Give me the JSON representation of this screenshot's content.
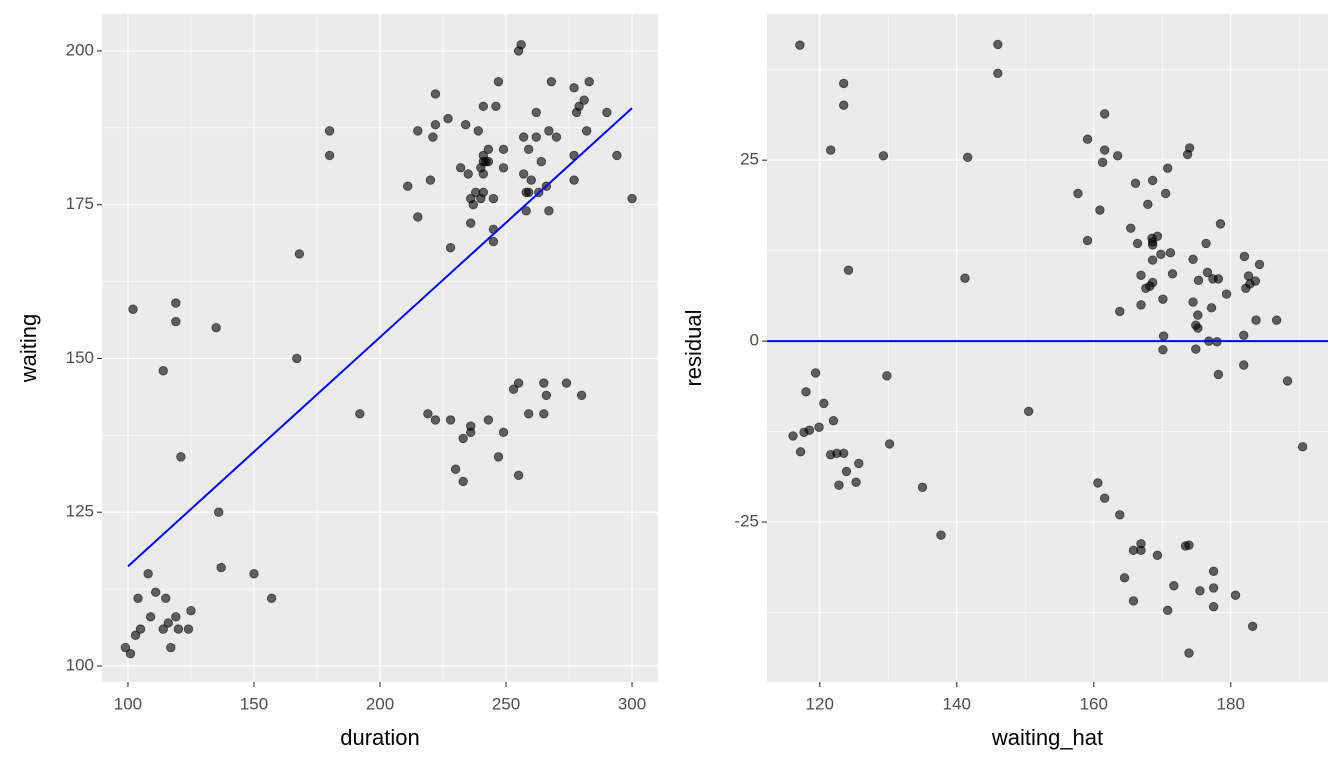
{
  "chart_data": [
    {
      "type": "scatter",
      "x_label": "duration",
      "y_label": "waiting",
      "color": "#000000",
      "alpha": 0.6,
      "grid": true,
      "panel_color": "#ebebeb",
      "xlim": [
        89.7,
        310.3
      ],
      "ylim": [
        97.4,
        206.0
      ],
      "xticks": [
        100,
        150,
        200,
        250,
        300
      ],
      "yticks": [
        100,
        125,
        150,
        175,
        200
      ],
      "x": [
        99,
        101,
        102,
        103,
        104,
        105,
        108,
        109,
        111,
        114,
        114,
        115,
        116,
        117,
        119,
        119,
        119,
        120,
        121,
        124,
        125,
        135,
        136,
        137,
        150,
        157,
        167,
        168,
        180,
        180,
        192,
        211,
        215,
        215,
        220,
        219,
        221,
        222,
        222,
        222,
        227,
        228,
        228,
        230,
        232,
        233,
        233,
        234,
        235,
        236,
        236,
        236,
        236,
        237,
        238,
        239,
        240,
        240,
        241,
        241,
        241,
        241,
        241,
        242,
        243,
        243,
        243,
        245,
        245,
        245,
        246,
        247,
        247,
        249,
        249,
        249,
        253,
        255,
        255,
        255,
        256,
        257,
        257,
        258,
        258,
        259,
        259,
        259,
        260,
        262,
        262,
        263,
        264,
        265,
        265,
        266,
        266,
        267,
        267,
        268,
        270,
        274,
        277,
        277,
        277,
        278,
        279,
        280,
        281,
        282,
        283,
        290,
        294,
        300
      ],
      "y": [
        103,
        102,
        158,
        105,
        111,
        106,
        115,
        108,
        112,
        106,
        148,
        111,
        107,
        103,
        108,
        159,
        156,
        106,
        134,
        106,
        109,
        155,
        125,
        116,
        115,
        111,
        150,
        167,
        183,
        187,
        141,
        178,
        173,
        187,
        179,
        141,
        186,
        188,
        193,
        140,
        189,
        168,
        140,
        132,
        181,
        137,
        130,
        188,
        180,
        176,
        172,
        139,
        138,
        175,
        177,
        187,
        181,
        176,
        191,
        180,
        182,
        183,
        177,
        182,
        184,
        140,
        182,
        171,
        176,
        169,
        191,
        134,
        195,
        138,
        184,
        181,
        145,
        131,
        146,
        200,
        201,
        186,
        180,
        177,
        174,
        184,
        141,
        177,
        179,
        190,
        186,
        177,
        182,
        146,
        141,
        144,
        178,
        174,
        187,
        195,
        186,
        146,
        179,
        183,
        194,
        190,
        191,
        144,
        192,
        187,
        195,
        190,
        183,
        176
      ],
      "fit": {
        "x": [
          100,
          300
        ],
        "y": [
          116.2,
          190.7
        ],
        "color": "#0000ff"
      }
    },
    {
      "type": "scatter",
      "x_label": "waiting_hat",
      "y_label": "residual",
      "color": "#000000",
      "alpha": 0.6,
      "grid": true,
      "panel_color": "#ebebeb",
      "xlim": [
        112.3,
        194.2
      ],
      "ylim": [
        -47.1,
        45.2
      ],
      "xticks": [
        120,
        140,
        160,
        180
      ],
      "yticks": [
        -25,
        0,
        25
      ],
      "x": [
        117.1,
        116.1,
        117.2,
        117.7,
        118.0,
        118.5,
        119.4,
        119.9,
        120.6,
        121.6,
        121.6,
        122.0,
        122.5,
        122.8,
        123.5,
        123.5,
        123.5,
        123.9,
        124.2,
        125.3,
        125.7,
        129.3,
        129.8,
        130.2,
        135.0,
        137.7,
        141.2,
        141.6,
        146.0,
        146.0,
        150.5,
        157.7,
        159.1,
        159.1,
        160.6,
        160.9,
        161.3,
        161.6,
        161.6,
        161.6,
        163.5,
        163.8,
        163.8,
        164.5,
        165.4,
        165.8,
        165.8,
        166.1,
        166.4,
        166.9,
        166.9,
        166.9,
        166.9,
        167.6,
        167.9,
        168.2,
        168.5,
        168.6,
        168.6,
        168.6,
        168.6,
        168.6,
        169.3,
        169.3,
        169.8,
        170.1,
        170.2,
        170.1,
        170.5,
        170.8,
        170.8,
        171.2,
        171.5,
        171.7,
        173.4,
        173.7,
        173.9,
        174.0,
        173.9,
        174.5,
        174.5,
        174.9,
        174.9,
        175.2,
        175.2,
        175.3,
        175.5,
        176.4,
        176.6,
        176.8,
        177.2,
        177.4,
        177.5,
        177.5,
        177.5,
        178.0,
        178.2,
        178.2,
        178.5,
        179.4,
        180.7,
        181.9,
        181.9,
        182.0,
        182.2,
        182.6,
        182.8,
        183.2,
        183.6,
        183.7,
        184.2,
        186.7,
        188.3,
        190.5
      ],
      "y": [
        40.9,
        -13.1,
        -15.3,
        -12.6,
        -7.0,
        -12.3,
        -4.4,
        -11.9,
        -8.6,
        26.4,
        -15.7,
        -11.0,
        -15.5,
        -19.9,
        -15.5,
        35.6,
        32.6,
        -18.0,
        9.8,
        -19.5,
        -16.9,
        25.6,
        -4.8,
        -14.2,
        -20.2,
        -26.8,
        8.7,
        25.4,
        41.0,
        37.0,
        -9.7,
        20.4,
        27.9,
        13.9,
        -19.6,
        18.1,
        24.7,
        26.4,
        -21.7,
        31.4,
        25.6,
        4.1,
        -24.0,
        -32.7,
        15.6,
        -28.9,
        -35.9,
        21.8,
        13.5,
        -28.0,
        9.1,
        -28.9,
        5.0,
        7.3,
        18.9,
        7.6,
        14.2,
        22.2,
        13.3,
        11.2,
        8.1,
        13.7,
        14.5,
        -29.6,
        12.0,
        5.8,
        0.7,
        -1.2,
        20.4,
        23.9,
        -37.2,
        12.2,
        9.3,
        -33.8,
        -28.3,
        25.8,
        -28.2,
        26.7,
        -43.1,
        11.3,
        5.4,
        2.2,
        -1.1,
        3.6,
        1.8,
        8.4,
        -34.5,
        13.5,
        9.5,
        0.0,
        4.6,
        8.6,
        -31.8,
        -34.1,
        -36.7,
        -0.1,
        -4.6,
        8.6,
        16.2,
        6.5,
        -35.1,
        0.8,
        -3.3,
        11.7,
        7.3,
        9.0,
        7.9,
        -39.4,
        8.3,
        2.9,
        10.6,
        2.9,
        -5.5,
        -14.6
      ],
      "hline": {
        "y": 0,
        "color": "#0000ff"
      }
    }
  ]
}
